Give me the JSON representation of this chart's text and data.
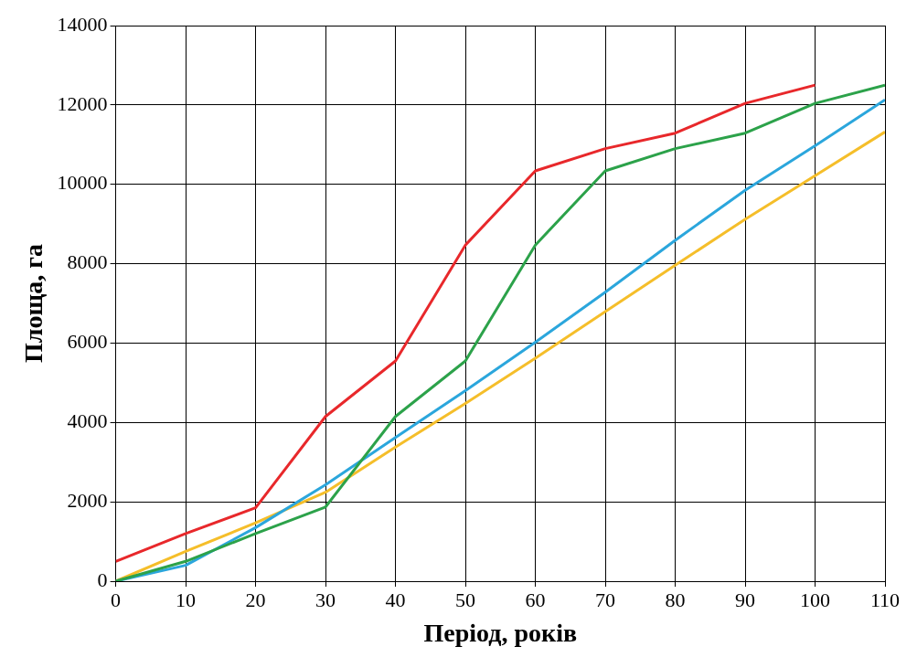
{
  "chart_data": {
    "type": "line",
    "xlabel": "Період, років",
    "ylabel": "Площа, га",
    "x": [
      0,
      10,
      20,
      30,
      40,
      50,
      60,
      70,
      80,
      90,
      100,
      110
    ],
    "xlim": [
      0,
      110
    ],
    "xticks": [
      0,
      10,
      20,
      30,
      40,
      50,
      60,
      70,
      80,
      90,
      100,
      110
    ],
    "ylim": [
      0,
      14000
    ],
    "yticks": [
      0,
      2000,
      4000,
      6000,
      8000,
      10000,
      12000,
      14000
    ],
    "grid": true,
    "legend": false,
    "marker": "none",
    "line_style": "solid",
    "series": [
      {
        "color": "#e8282b",
        "values": [
          500,
          1200,
          1850,
          4150,
          5550,
          8470,
          10340,
          10900,
          11290,
          12040,
          12500,
          null
        ]
      },
      {
        "color": "#2ca24a",
        "values": [
          0,
          500,
          1200,
          1870,
          4150,
          5550,
          8470,
          10340,
          10900,
          11290,
          12040,
          12500
        ]
      },
      {
        "color": "#2ba6dc",
        "values": [
          0,
          400,
          1350,
          2430,
          3620,
          4800,
          6020,
          7280,
          8590,
          9850,
          10970,
          12130
        ]
      },
      {
        "color": "#f5be2a",
        "values": [
          0,
          750,
          1470,
          2240,
          3380,
          4480,
          5620,
          6790,
          7960,
          9120,
          10220,
          11320
        ]
      }
    ]
  }
}
